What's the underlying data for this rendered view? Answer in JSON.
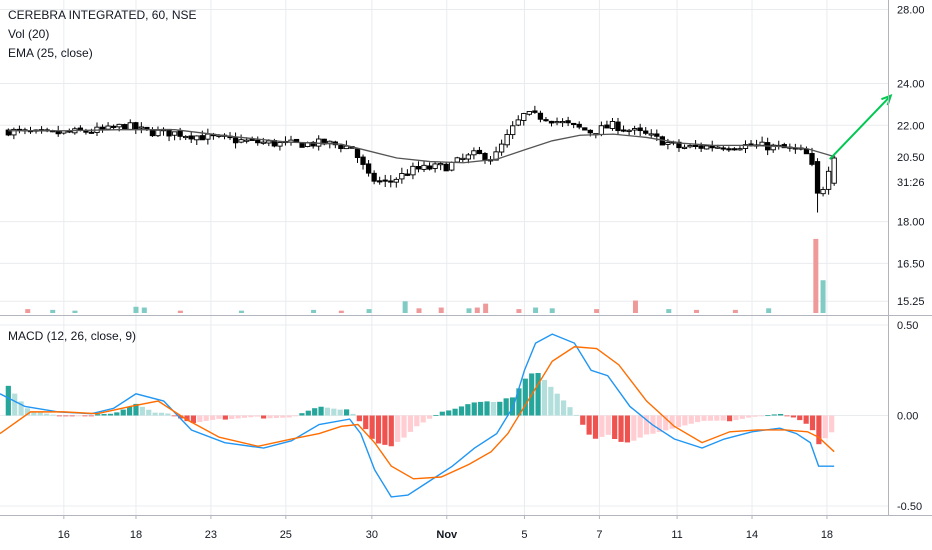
{
  "header": {
    "symbol_line": "CEREBRA INTEGRATED, 60, NSE",
    "vol_label": "Vol (20)",
    "ema_label": "EMA (25, close)",
    "macd_label": "MACD (12, 26, close, 9)"
  },
  "colors": {
    "up_candle": "#ffffff",
    "down_candle": "#000000",
    "ema_line": "#555555",
    "vol_up": "#80cbc4",
    "vol_down": "#ef9a9a",
    "macd_line": "#2196f3",
    "signal_line": "#ff6d00",
    "hist_pos_strong": "#26a69a",
    "hist_pos_weak": "#b2dfdb",
    "hist_neg_strong": "#ef5350",
    "hist_neg_weak": "#ffcdd2",
    "arrow": "#00c853",
    "grid": "#e9ecef"
  },
  "annotations": {
    "arrow_start": {
      "day_index": 14.8,
      "price": 20.5
    },
    "arrow_end": {
      "day_index": 15.9,
      "price": 23.4
    }
  },
  "chart_data": [
    {
      "type": "candlestick",
      "title": "CEREBRA INTEGRATED, 60, NSE",
      "x_tick_labels": [
        {
          "label": "16",
          "day_index": 1.0
        },
        {
          "label": "18",
          "day_index": 2.3
        },
        {
          "label": "23",
          "day_index": 3.65
        },
        {
          "label": "25",
          "day_index": 5.0
        },
        {
          "label": "30",
          "day_index": 6.55
        },
        {
          "label": "Nov",
          "day_index": 7.9
        },
        {
          "label": "5",
          "day_index": 9.3
        },
        {
          "label": "7",
          "day_index": 10.65
        },
        {
          "label": "11",
          "day_index": 12.05
        },
        {
          "label": "14",
          "day_index": 13.4
        },
        {
          "label": "18",
          "day_index": 14.75
        }
      ],
      "x_range": [
        -0.15,
        15.85
      ],
      "y_tick_labels": [
        "28.00",
        "24.00",
        "22.00",
        "18.00",
        "16.50",
        "15.25"
      ],
      "y_ticks": [
        28.0,
        24.0,
        22.0,
        18.0,
        16.5,
        15.25
      ],
      "scale": "log",
      "ylim": [
        14.85,
        28.5
      ],
      "last_price_tag": "20.50",
      "countdown_tag": "31:26",
      "overlays": [
        {
          "name": "EMA (25, close)"
        }
      ],
      "anchor_close": [
        [
          0.0,
          21.75
        ],
        [
          0.6,
          21.6
        ],
        [
          1.3,
          21.7
        ],
        [
          1.8,
          21.8
        ],
        [
          2.1,
          22.0
        ],
        [
          2.5,
          21.7
        ],
        [
          3.0,
          21.65
        ],
        [
          3.6,
          21.45
        ],
        [
          4.4,
          21.25
        ],
        [
          5.0,
          21.15
        ],
        [
          5.7,
          21.2
        ],
        [
          6.2,
          21.0
        ],
        [
          6.5,
          19.7
        ],
        [
          6.8,
          19.5
        ],
        [
          7.3,
          20.05
        ],
        [
          7.9,
          20.2
        ],
        [
          8.4,
          20.7
        ],
        [
          8.75,
          20.55
        ],
        [
          9.1,
          21.9
        ],
        [
          9.3,
          22.5
        ],
        [
          9.7,
          22.35
        ],
        [
          10.1,
          22.0
        ],
        [
          10.5,
          21.7
        ],
        [
          10.9,
          22.0
        ],
        [
          11.5,
          21.55
        ],
        [
          12.1,
          21.0
        ],
        [
          12.6,
          21.05
        ],
        [
          13.2,
          21.1
        ],
        [
          13.7,
          21.05
        ],
        [
          14.2,
          20.9
        ],
        [
          14.45,
          20.6
        ],
        [
          14.55,
          19.1
        ],
        [
          14.7,
          19.4
        ],
        [
          14.8,
          20.35
        ],
        [
          14.88,
          20.55
        ]
      ],
      "ema_anchor": [
        [
          0.0,
          21.75
        ],
        [
          1.0,
          21.75
        ],
        [
          2.0,
          21.8
        ],
        [
          3.0,
          21.8
        ],
        [
          4.0,
          21.5
        ],
        [
          5.0,
          21.25
        ],
        [
          6.0,
          21.15
        ],
        [
          6.5,
          20.85
        ],
        [
          7.0,
          20.55
        ],
        [
          7.6,
          20.4
        ],
        [
          8.2,
          20.35
        ],
        [
          8.8,
          20.5
        ],
        [
          9.3,
          20.9
        ],
        [
          9.8,
          21.3
        ],
        [
          10.3,
          21.55
        ],
        [
          10.9,
          21.6
        ],
        [
          11.5,
          21.45
        ],
        [
          12.1,
          21.2
        ],
        [
          12.7,
          21.1
        ],
        [
          13.3,
          21.1
        ],
        [
          13.9,
          21.05
        ],
        [
          14.4,
          20.95
        ],
        [
          14.9,
          20.6
        ]
      ]
    },
    {
      "type": "bar",
      "title": "Vol (20)",
      "note": "relative volume per hourly bar (0-1); small bars everywhere, two large spikes near the right",
      "x_range": [
        -0.15,
        15.85
      ],
      "bars": [
        [
          0.35,
          0.05,
          "dn"
        ],
        [
          0.8,
          0.04,
          "up"
        ],
        [
          1.2,
          0.03,
          "up"
        ],
        [
          2.3,
          0.08,
          "up"
        ],
        [
          2.45,
          0.07,
          "up"
        ],
        [
          3.1,
          0.03,
          "dn"
        ],
        [
          4.2,
          0.03,
          "up"
        ],
        [
          5.5,
          0.04,
          "up"
        ],
        [
          6.0,
          0.03,
          "dn"
        ],
        [
          6.5,
          0.05,
          "up"
        ],
        [
          7.15,
          0.15,
          "up"
        ],
        [
          7.4,
          0.06,
          "dn"
        ],
        [
          7.8,
          0.07,
          "dn"
        ],
        [
          8.3,
          0.06,
          "up"
        ],
        [
          8.45,
          0.07,
          "dn"
        ],
        [
          8.6,
          0.12,
          "dn"
        ],
        [
          9.2,
          0.05,
          "dn"
        ],
        [
          9.5,
          0.07,
          "up"
        ],
        [
          9.8,
          0.06,
          "up"
        ],
        [
          10.6,
          0.05,
          "dn"
        ],
        [
          11.3,
          0.16,
          "dn"
        ],
        [
          11.9,
          0.05,
          "up"
        ],
        [
          12.4,
          0.04,
          "dn"
        ],
        [
          13.1,
          0.04,
          "dn"
        ],
        [
          13.7,
          0.06,
          "up"
        ],
        [
          14.55,
          0.95,
          "dn"
        ],
        [
          14.68,
          0.42,
          "up"
        ]
      ]
    },
    {
      "type": "line",
      "title": "MACD (12, 26, close, 9)",
      "y_tick_labels": [
        "0.50",
        "0.00",
        "-0.50"
      ],
      "y_ticks": [
        0.5,
        0.0,
        -0.5
      ],
      "ylim": [
        -0.55,
        0.55
      ],
      "x_range": [
        -0.15,
        15.85
      ],
      "series": [
        {
          "name": "MACD",
          "points": [
            [
              -0.15,
              0.12
            ],
            [
              0.3,
              0.05
            ],
            [
              0.9,
              0.02
            ],
            [
              1.5,
              0.01
            ],
            [
              1.9,
              0.04
            ],
            [
              2.3,
              0.12
            ],
            [
              2.8,
              0.08
            ],
            [
              3.3,
              -0.08
            ],
            [
              3.9,
              -0.15
            ],
            [
              4.6,
              -0.18
            ],
            [
              5.1,
              -0.14
            ],
            [
              5.6,
              -0.05
            ],
            [
              6.15,
              -0.02
            ],
            [
              6.35,
              -0.1
            ],
            [
              6.6,
              -0.3
            ],
            [
              6.9,
              -0.45
            ],
            [
              7.2,
              -0.44
            ],
            [
              7.5,
              -0.38
            ],
            [
              8.0,
              -0.28
            ],
            [
              8.4,
              -0.18
            ],
            [
              8.8,
              -0.1
            ],
            [
              9.1,
              0.05
            ],
            [
              9.3,
              0.25
            ],
            [
              9.5,
              0.4
            ],
            [
              9.8,
              0.45
            ],
            [
              10.2,
              0.4
            ],
            [
              10.5,
              0.25
            ],
            [
              10.8,
              0.22
            ],
            [
              11.2,
              0.05
            ],
            [
              11.6,
              -0.05
            ],
            [
              12.0,
              -0.13
            ],
            [
              12.5,
              -0.18
            ],
            [
              12.9,
              -0.13
            ],
            [
              13.4,
              -0.09
            ],
            [
              13.9,
              -0.07
            ],
            [
              14.2,
              -0.1
            ],
            [
              14.45,
              -0.15
            ],
            [
              14.6,
              -0.28
            ],
            [
              14.88,
              -0.28
            ]
          ]
        },
        {
          "name": "Signal",
          "points": [
            [
              -0.15,
              -0.1
            ],
            [
              0.4,
              0.02
            ],
            [
              1.0,
              0.02
            ],
            [
              1.6,
              0.01
            ],
            [
              2.2,
              0.05
            ],
            [
              2.7,
              0.08
            ],
            [
              3.2,
              -0.02
            ],
            [
              3.8,
              -0.12
            ],
            [
              4.5,
              -0.17
            ],
            [
              5.1,
              -0.13
            ],
            [
              5.6,
              -0.1
            ],
            [
              6.0,
              -0.06
            ],
            [
              6.3,
              -0.05
            ],
            [
              6.6,
              -0.15
            ],
            [
              6.9,
              -0.28
            ],
            [
              7.3,
              -0.35
            ],
            [
              7.8,
              -0.34
            ],
            [
              8.3,
              -0.27
            ],
            [
              8.7,
              -0.2
            ],
            [
              9.0,
              -0.1
            ],
            [
              9.4,
              0.1
            ],
            [
              9.8,
              0.3
            ],
            [
              10.2,
              0.38
            ],
            [
              10.6,
              0.37
            ],
            [
              11.0,
              0.28
            ],
            [
              11.5,
              0.08
            ],
            [
              12.0,
              -0.06
            ],
            [
              12.5,
              -0.15
            ],
            [
              13.0,
              -0.09
            ],
            [
              13.5,
              -0.08
            ],
            [
              14.0,
              -0.08
            ],
            [
              14.4,
              -0.09
            ],
            [
              14.6,
              -0.12
            ],
            [
              14.88,
              -0.2
            ]
          ]
        }
      ]
    }
  ]
}
